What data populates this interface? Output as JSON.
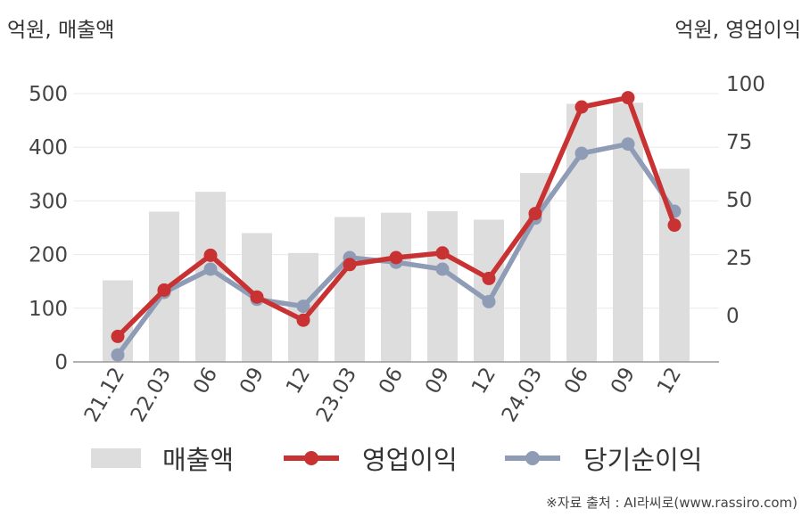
{
  "units": {
    "left": "억원, 매출액",
    "right": "억원, 영업이익"
  },
  "chart_data": {
    "type": "bar+line",
    "categories": [
      "21.12",
      "22.03",
      "06",
      "09",
      "12",
      "23.03",
      "06",
      "09",
      "12",
      "24.03",
      "06",
      "09",
      "12"
    ],
    "left_axis": {
      "ticks": [
        0,
        100,
        200,
        300,
        400,
        500
      ],
      "ylim": [
        0,
        500
      ]
    },
    "right_axis": {
      "ticks": [
        0,
        25,
        50,
        75,
        100
      ],
      "ylim": [
        -20,
        100
      ]
    },
    "series": [
      {
        "name": "매출액",
        "kind": "bar",
        "axis": "left",
        "color": "#dddddd",
        "values": [
          152,
          280,
          317,
          240,
          203,
          270,
          278,
          281,
          265,
          352,
          481,
          483,
          360
        ]
      },
      {
        "name": "영업이익",
        "kind": "line",
        "axis": "right",
        "color": "#c83232",
        "values": [
          -9,
          11,
          26,
          8,
          -2,
          22,
          25,
          27,
          16,
          44,
          90,
          94,
          39
        ]
      },
      {
        "name": "당기순이익",
        "kind": "line",
        "axis": "right",
        "color": "#8f9cb6",
        "values": [
          -17,
          10,
          20,
          7,
          4,
          25,
          23,
          20,
          6,
          42,
          70,
          74,
          45
        ]
      }
    ],
    "grid": true,
    "legend": "bottom"
  },
  "source": "※자료 출처 : AI라씨로(www.rassiro.com)"
}
